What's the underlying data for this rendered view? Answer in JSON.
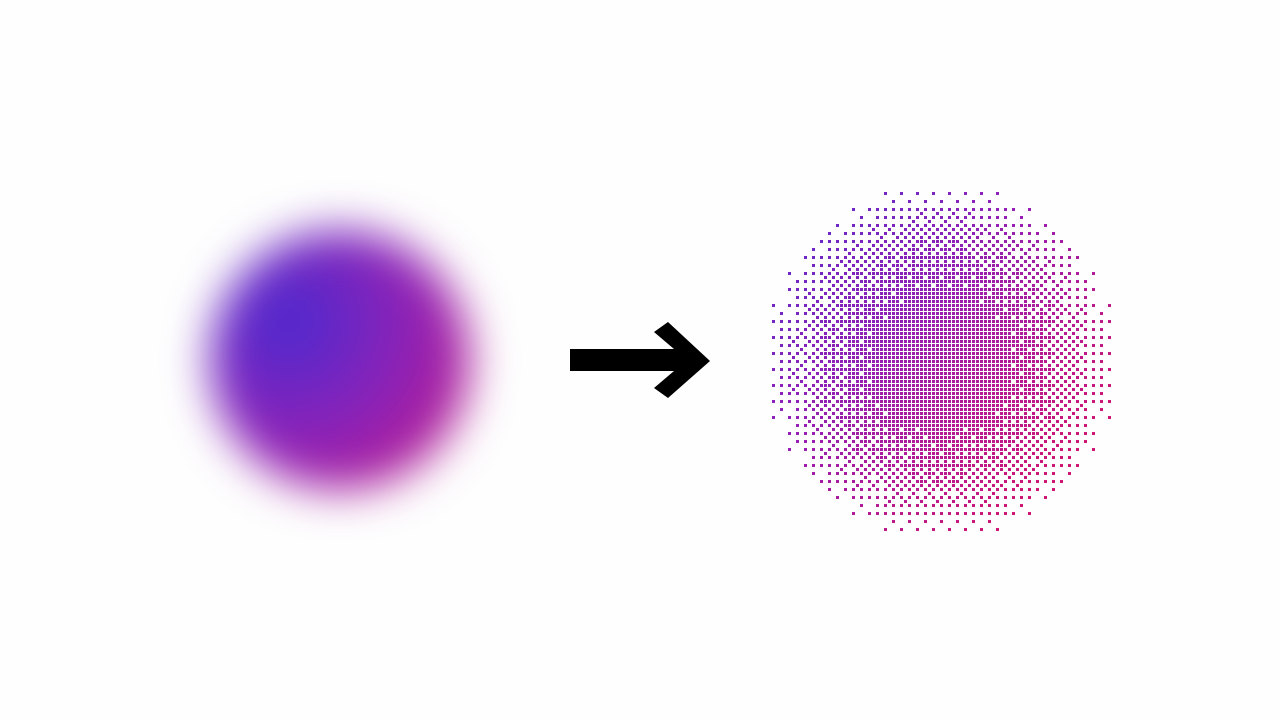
{
  "illustration": {
    "left_panel": {
      "kind": "blurred-gradient-orb",
      "colors": {
        "start": "#4b2ad0",
        "mid": "#8f22b6",
        "end": "#d11577"
      }
    },
    "arrow": {
      "icon": "right-arrow-icon",
      "color": "#000000"
    },
    "right_panel": {
      "kind": "dithered-gradient-orb",
      "colors": {
        "start": "#4b2ad0",
        "mid": "#8f22b6",
        "end": "#d11577"
      }
    }
  }
}
